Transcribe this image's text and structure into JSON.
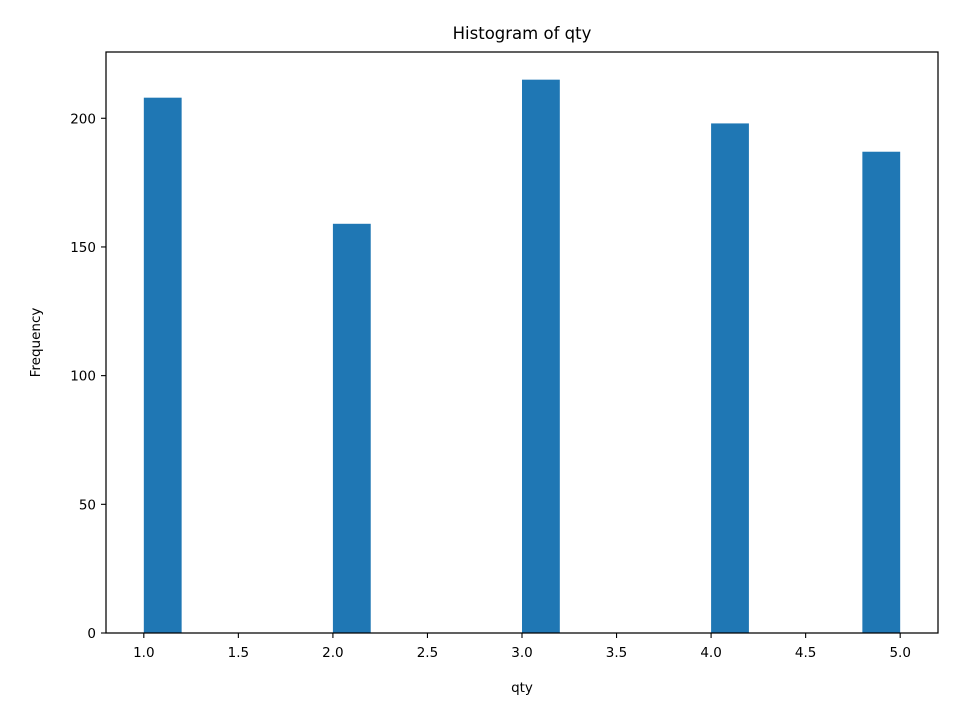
{
  "chart_data": {
    "type": "bar",
    "title": "Histogram of qty",
    "xlabel": "qty",
    "ylabel": "Frequency",
    "xlim": [
      0.8,
      5.2
    ],
    "ylim": [
      0,
      225.75
    ],
    "grid": false,
    "legend": "none",
    "bar_color": "#1f77b4",
    "bin_width": 0.2,
    "bins": [
      {
        "x_start": 1.0,
        "x_end": 1.2,
        "count": 208
      },
      {
        "x_start": 2.0,
        "x_end": 2.2,
        "count": 159
      },
      {
        "x_start": 3.0,
        "x_end": 3.2,
        "count": 215
      },
      {
        "x_start": 4.0,
        "x_end": 4.2,
        "count": 198
      },
      {
        "x_start": 4.8,
        "x_end": 5.0,
        "count": 187
      }
    ],
    "x_ticks": [
      {
        "value": 1.0,
        "label": "1.0"
      },
      {
        "value": 1.5,
        "label": "1.5"
      },
      {
        "value": 2.0,
        "label": "2.0"
      },
      {
        "value": 2.5,
        "label": "2.5"
      },
      {
        "value": 3.0,
        "label": "3.0"
      },
      {
        "value": 3.5,
        "label": "3.5"
      },
      {
        "value": 4.0,
        "label": "4.0"
      },
      {
        "value": 4.5,
        "label": "4.5"
      },
      {
        "value": 5.0,
        "label": "5.0"
      }
    ],
    "y_ticks": [
      {
        "value": 0,
        "label": "0"
      },
      {
        "value": 50,
        "label": "50"
      },
      {
        "value": 100,
        "label": "100"
      },
      {
        "value": 150,
        "label": "150"
      },
      {
        "value": 200,
        "label": "200"
      }
    ]
  }
}
